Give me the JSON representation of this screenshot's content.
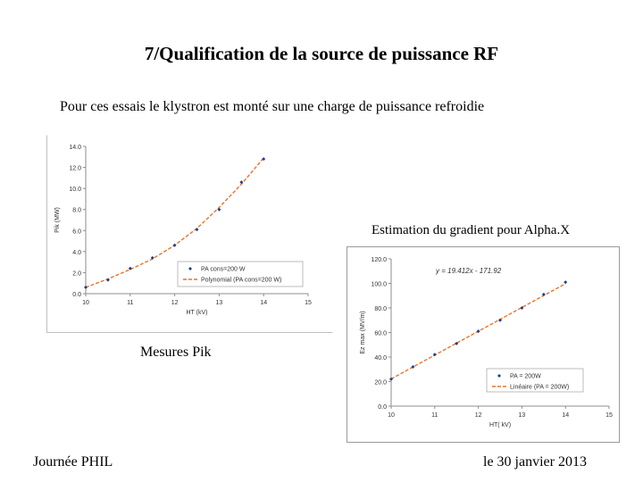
{
  "slide": {
    "title": "7/Qualification de la source de puissance RF",
    "subtitle": "Pour ces essais le klystron est monté sur une charge de puissance refroidie",
    "estimation_label": "Estimation du gradient pour Alpha.X",
    "mesures_label": "Mesures Pik",
    "footer_left": "Journée PHIL",
    "footer_right": "le 30 janvier 2013"
  },
  "chart_data": [
    {
      "type": "scatter",
      "xlabel": "HT (kV)",
      "ylabel": "Pik (MW)",
      "xlim": [
        10,
        15
      ],
      "ylim": [
        0,
        14
      ],
      "x_ticks": [
        "10",
        "11",
        "12",
        "13",
        "14",
        "15"
      ],
      "y_ticks": [
        "0.0",
        "2.0",
        "4.0",
        "6.0",
        "8.0",
        "10.0",
        "12.0",
        "14.0"
      ],
      "grid": false,
      "legend_position": "bottom-right",
      "series": [
        {
          "name": "PA cons=200 W",
          "marker": "diamond",
          "color": "#1f3f8f",
          "x": [
            10.0,
            10.5,
            11.0,
            11.5,
            12.0,
            12.5,
            13.0,
            13.5,
            14.0
          ],
          "y": [
            0.6,
            1.3,
            2.4,
            3.4,
            4.6,
            6.1,
            8.0,
            10.6,
            12.8
          ]
        },
        {
          "name": "Polynomial (PA cons=200 W)",
          "style": "dashed",
          "color": "#e8742a",
          "x": [
            10.0,
            10.5,
            11.0,
            11.5,
            12.0,
            12.5,
            13.0,
            13.5,
            14.0
          ],
          "y": [
            0.6,
            1.4,
            2.3,
            3.3,
            4.6,
            6.2,
            8.2,
            10.4,
            12.9
          ]
        }
      ]
    },
    {
      "type": "scatter",
      "xlabel": "HT( kV)",
      "ylabel": "Ez max (MV/m)",
      "xlim": [
        10,
        15
      ],
      "ylim": [
        0,
        120
      ],
      "x_ticks": [
        "10",
        "11",
        "12",
        "13",
        "14",
        "15"
      ],
      "y_ticks": [
        "0.0",
        "20.0",
        "40.0",
        "60.0",
        "80.0",
        "100.0",
        "120.0"
      ],
      "grid": false,
      "legend_position": "bottom-right",
      "annotation": "y = 19.412x - 171.92",
      "series": [
        {
          "name": "PA = 200W",
          "marker": "diamond",
          "color": "#1f3f8f",
          "x": [
            10.0,
            10.5,
            11.0,
            11.5,
            12.0,
            12.5,
            13.0,
            13.5,
            14.0
          ],
          "y": [
            22.0,
            32.0,
            42.0,
            51.0,
            61.0,
            70.0,
            80.0,
            91.0,
            101.0
          ]
        },
        {
          "name": "Linéaire (PA = 200W)",
          "style": "dashed",
          "color": "#e8742a",
          "x": [
            10.0,
            14.0
          ],
          "y": [
            22.2,
            99.8
          ]
        }
      ]
    }
  ]
}
